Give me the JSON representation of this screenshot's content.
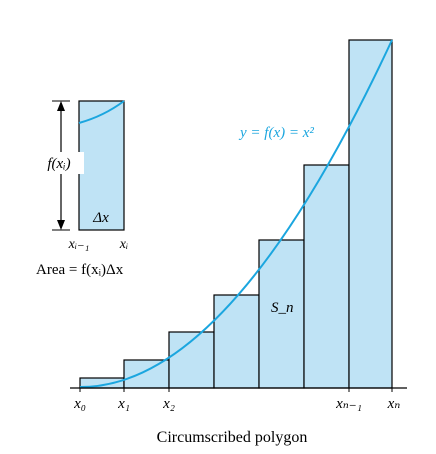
{
  "diagram": {
    "curve_label": "y = f(x) = x²",
    "region_label": "S_n",
    "caption": "Circumscribed polygon",
    "x_tick_labels": [
      "x₀",
      "x₁",
      "x₂",
      "xₙ₋₁",
      "xₙ"
    ],
    "inset": {
      "height_label": "f(xᵢ)",
      "width_label": "Δx",
      "left_tick_label": "xᵢ₋₁",
      "right_tick_label": "xᵢ",
      "area_label": "Area = f(xᵢ)Δx"
    },
    "colors": {
      "fill": "#bfe3f5",
      "curve": "#1ba6df",
      "stroke": "#000000",
      "curve_label": "#1ba6df"
    }
  }
}
